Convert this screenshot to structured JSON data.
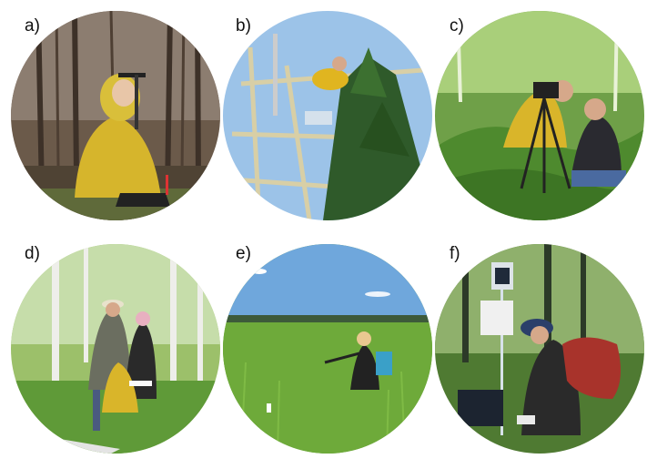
{
  "panels": [
    {
      "label": "a)",
      "scene": "forest measurement person in yellow jacket"
    },
    {
      "label": "b)",
      "scene": "scaffold tower with pine tree"
    },
    {
      "label": "c)",
      "scene": "two people with tripod camera in vegetation"
    },
    {
      "label": "d)",
      "scene": "three people in birch forest"
    },
    {
      "label": "e)",
      "scene": "person with instrument on open mire"
    },
    {
      "label": "f)",
      "scene": "person with backpack near weather station"
    }
  ]
}
